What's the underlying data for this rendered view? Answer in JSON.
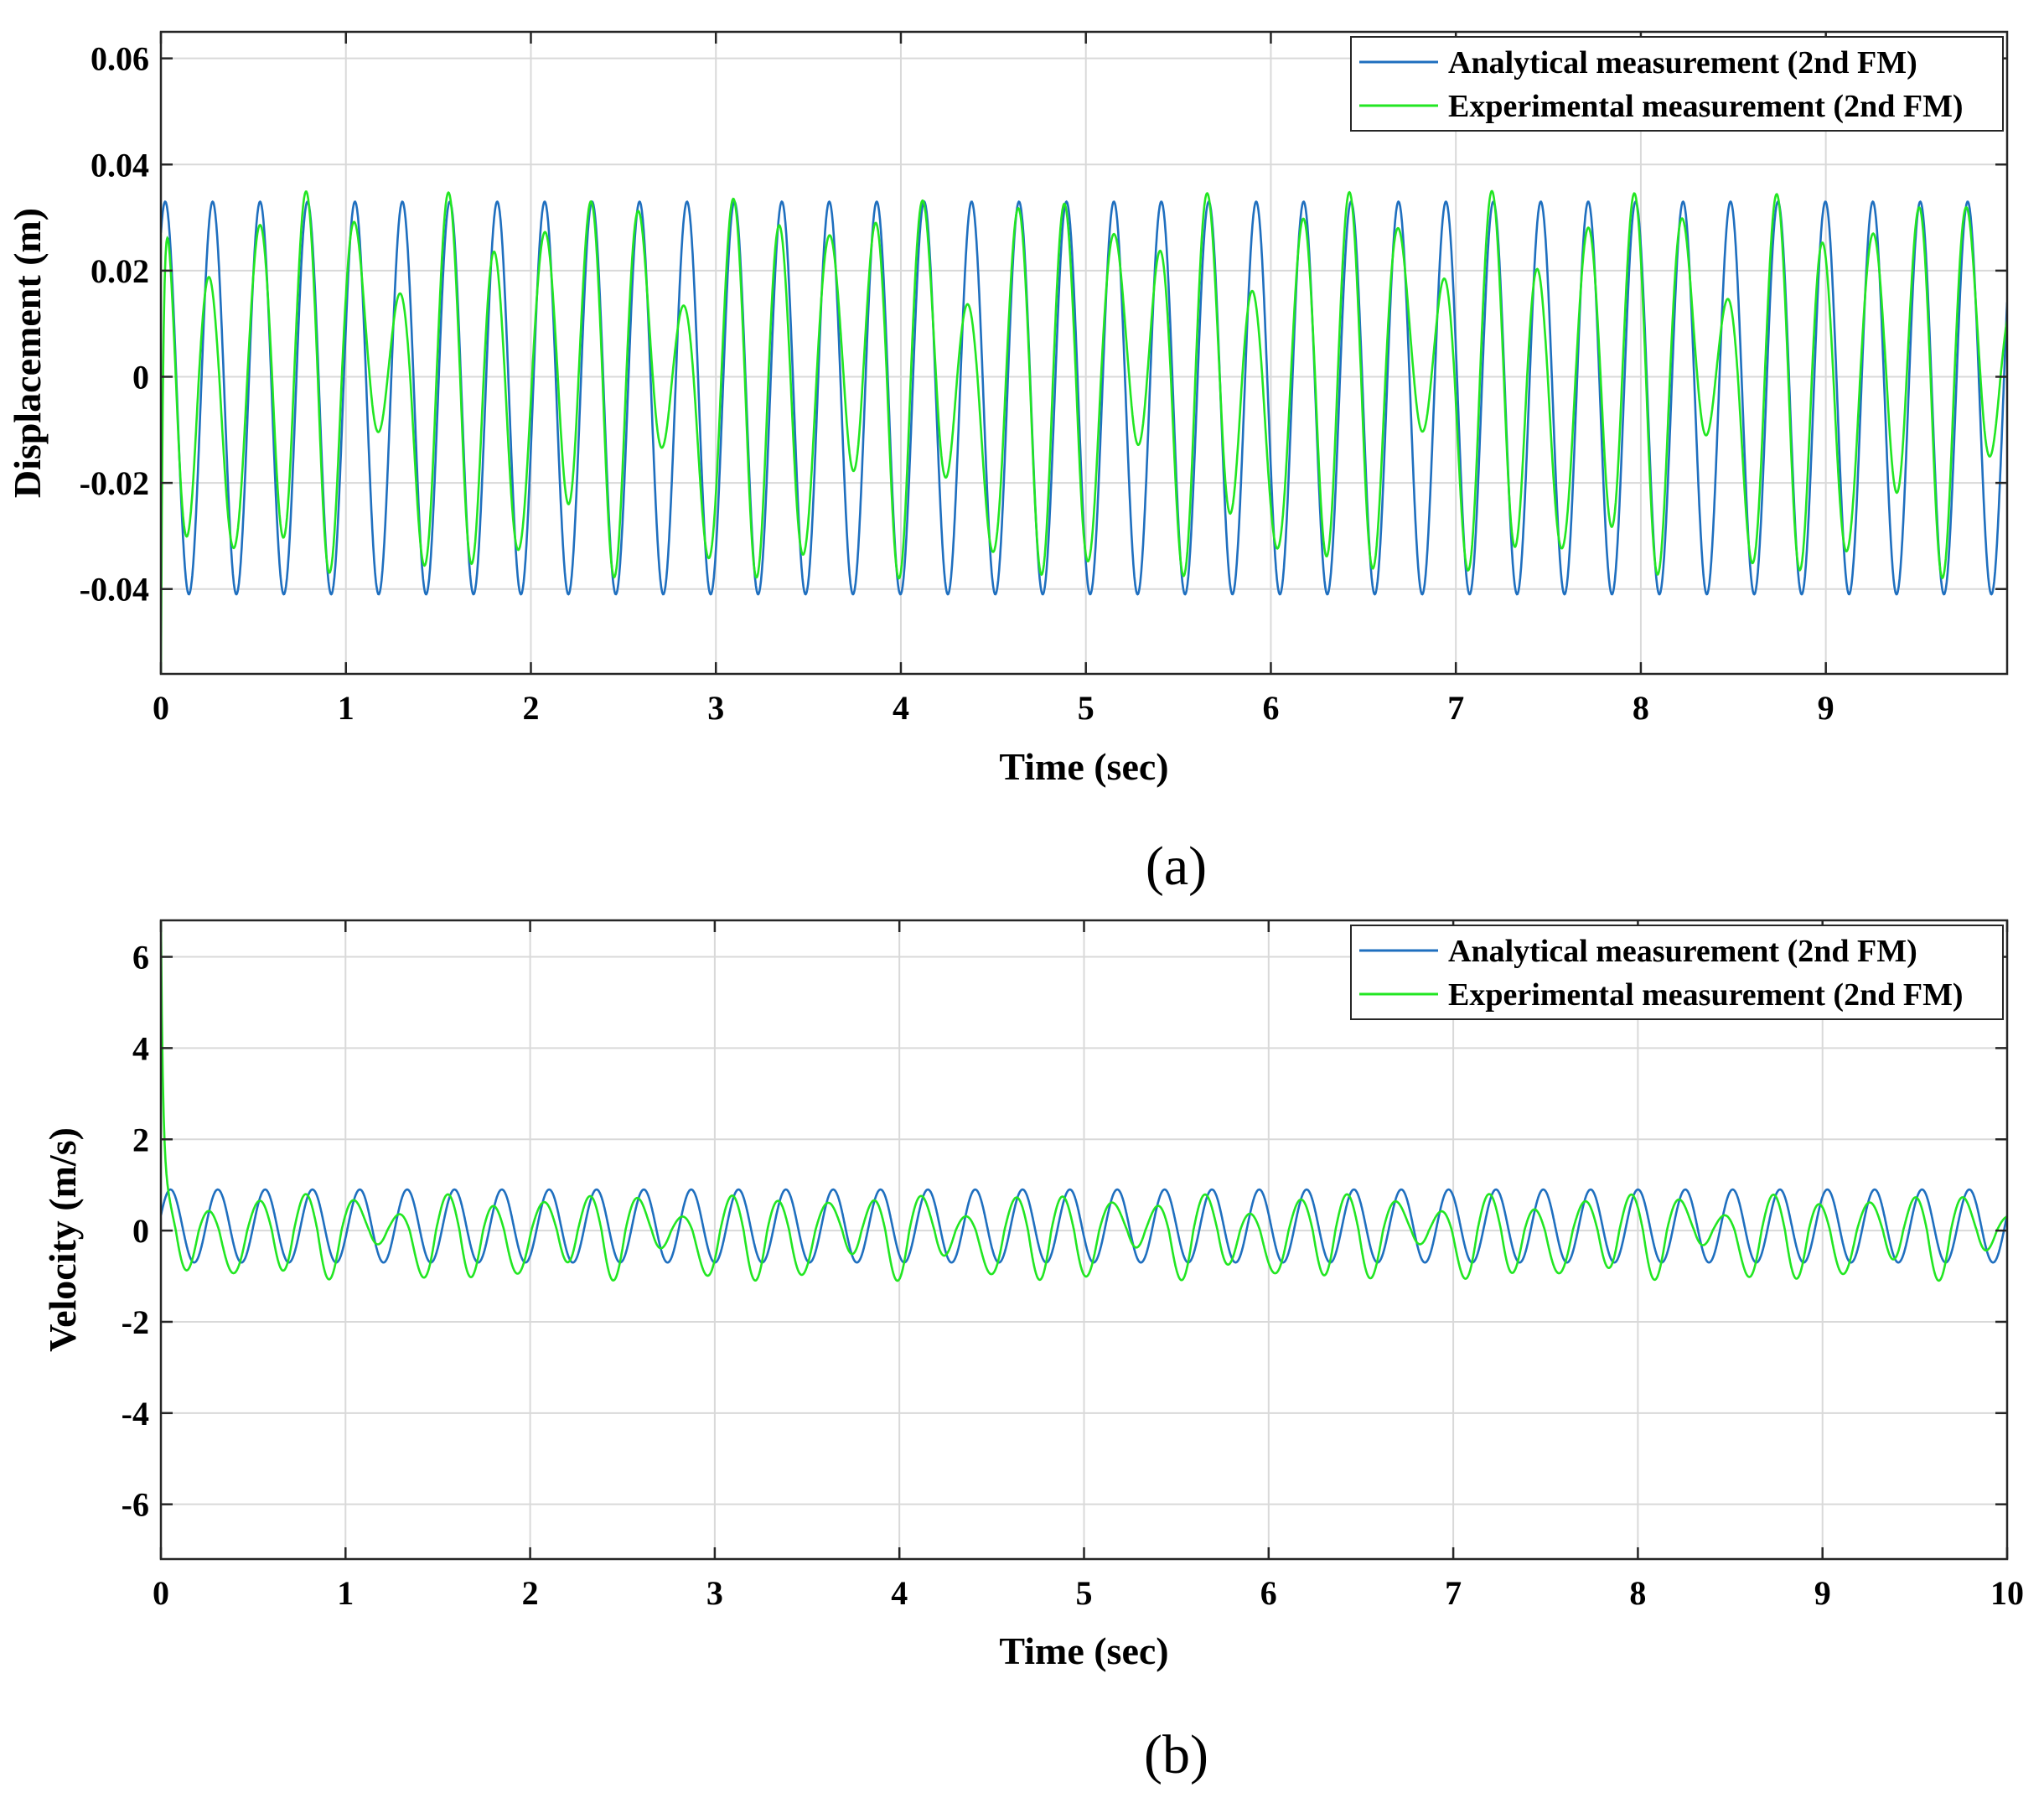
{
  "chart_data": [
    {
      "type": "line",
      "panel_label": "(a)",
      "title": "",
      "xlabel": "Time (sec)",
      "ylabel": "Displacement (m)",
      "xlim": [
        0,
        9.98
      ],
      "ylim": [
        -0.056,
        0.065
      ],
      "xticks": [
        0,
        1,
        2,
        3,
        4,
        5,
        6,
        7,
        8,
        9
      ],
      "xtick_labels": [
        "0",
        "1",
        "2",
        "3",
        "4",
        "5",
        "6",
        "7",
        "8",
        "9"
      ],
      "yticks": [
        -0.04,
        -0.02,
        0,
        0.02,
        0.04,
        0.06
      ],
      "ytick_labels": [
        "-0.04",
        "-0.02",
        "0",
        "0.02",
        "0.04",
        "0.06"
      ],
      "grid": true,
      "legend_position": "top-right",
      "series": [
        {
          "name": "Analytical measurement (2nd FM)",
          "color": "#1f6fbf",
          "model": {
            "kind": "sine",
            "offset": -0.004,
            "amplitude": 0.037,
            "frequency_hz": 3.9,
            "phase_rad": 1.0
          },
          "peak_value": 0.033,
          "trough_value": -0.041
        },
        {
          "name": "Experimental measurement (2nd FM)",
          "color": "#22e622",
          "model": {
            "kind": "two_tone",
            "offset": 0.0,
            "frequency_hz": 3.9,
            "envelope_period_s": 0.8,
            "peak_value": 0.035,
            "trough_value": -0.038
          },
          "start_value": -0.056,
          "peak_value": 0.035,
          "trough_value": -0.038
        }
      ]
    },
    {
      "type": "line",
      "panel_label": "(b)",
      "title": "",
      "xlabel": "Time (sec)",
      "ylabel": "Velocity (m/s)",
      "xlim": [
        0,
        10
      ],
      "ylim": [
        -7.2,
        6.8
      ],
      "xticks": [
        0,
        1,
        2,
        3,
        4,
        5,
        6,
        7,
        8,
        9,
        10
      ],
      "xtick_labels": [
        "0",
        "1",
        "2",
        "3",
        "4",
        "5",
        "6",
        "7",
        "8",
        "9",
        "10"
      ],
      "yticks": [
        -6,
        -4,
        -2,
        0,
        2,
        4,
        6
      ],
      "ytick_labels": [
        "-6",
        "-4",
        "-2",
        "0",
        "2",
        "4",
        "6"
      ],
      "grid": true,
      "legend_position": "top-right",
      "series": [
        {
          "name": "Analytical measurement (2nd FM)",
          "color": "#1f6fbf",
          "model": {
            "kind": "sine",
            "offset": 0.1,
            "amplitude": 0.8,
            "frequency_hz": 3.9,
            "phase_rad": 0.3
          },
          "peak_value": 0.9,
          "trough_value": -0.7
        },
        {
          "name": "Experimental measurement (2nd FM)",
          "color": "#22e622",
          "model": {
            "kind": "two_tone",
            "offset": 0.0,
            "frequency_hz": 3.9,
            "envelope_period_s": 0.8,
            "peak_value": 0.8,
            "trough_value": -1.1
          },
          "start_value": 6.8,
          "peak_value": 0.8,
          "trough_value": -1.1
        }
      ]
    }
  ]
}
